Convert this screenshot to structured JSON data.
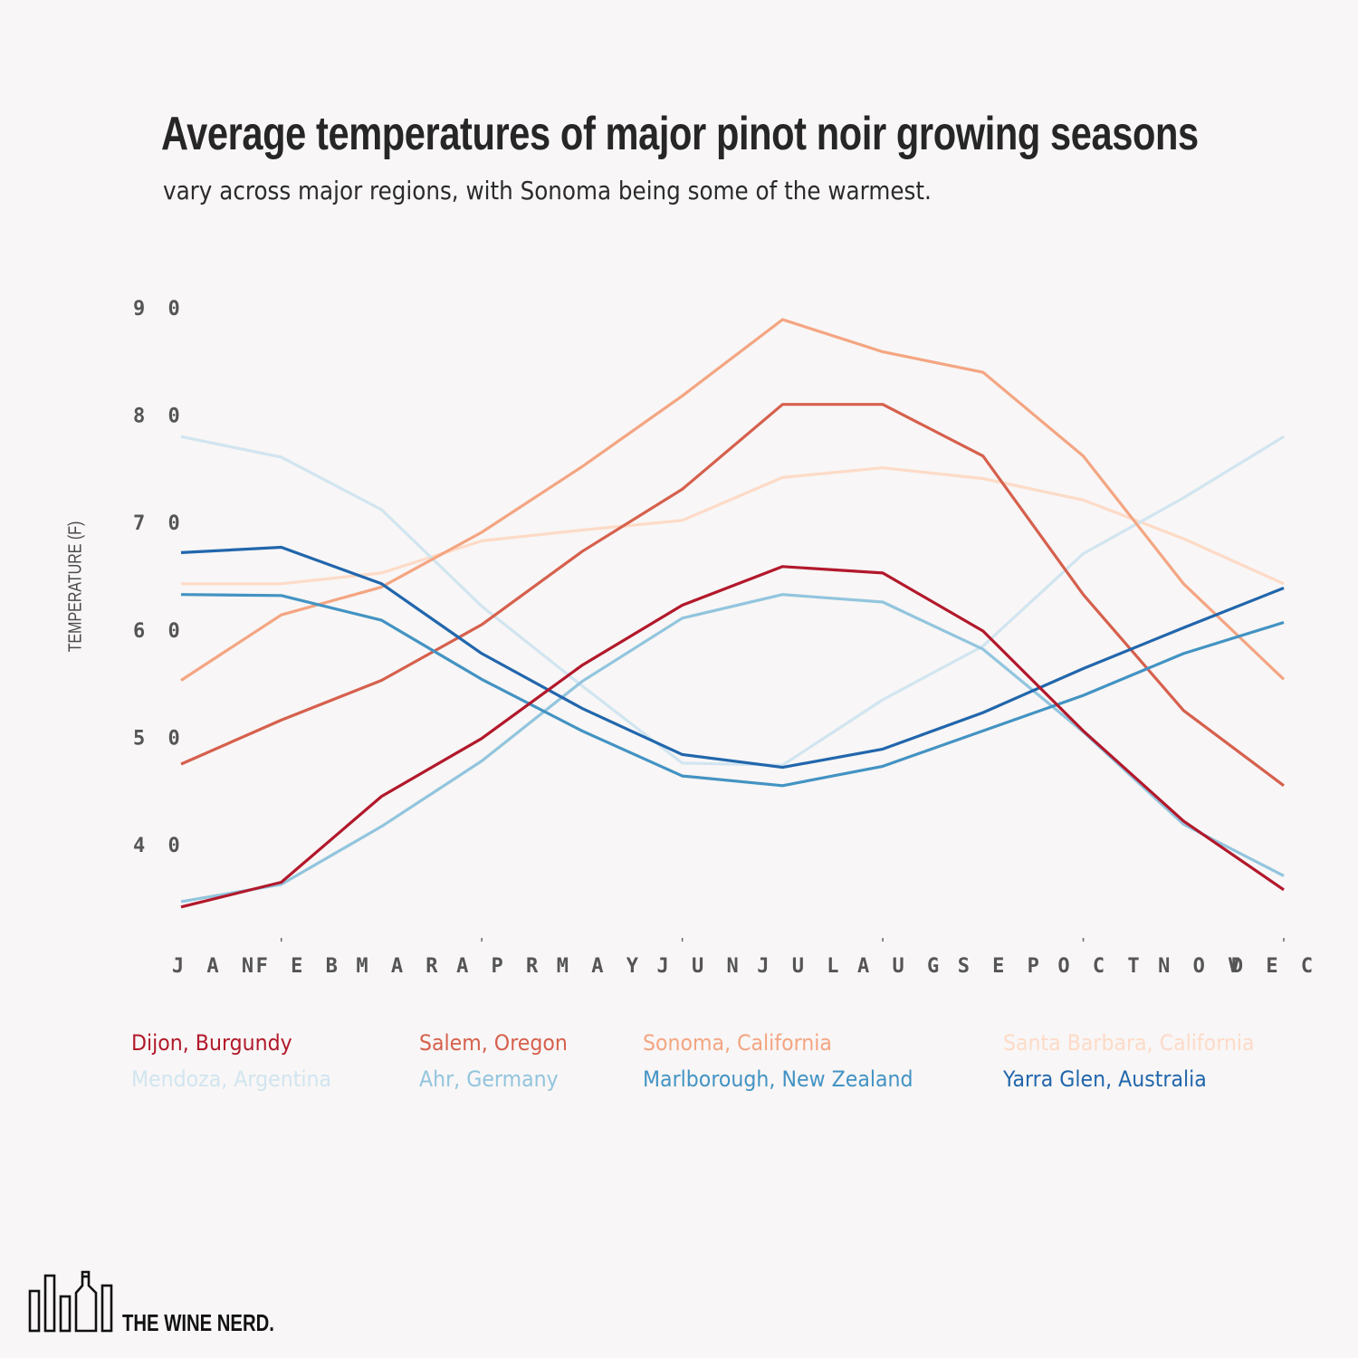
{
  "chart_data": {
    "type": "line",
    "title": "Average temperatures of major pinot noir growing seasons",
    "subtitle": "vary across major regions, with Sonoma being some of the warmest.",
    "xlabel": "",
    "ylabel": "TEMPERATURE (F)",
    "x": [
      "JAN",
      "FEB",
      "MAR",
      "APR",
      "MAY",
      "JUN",
      "JUL",
      "AUG",
      "SEP",
      "OCT",
      "NOV",
      "DEC"
    ],
    "y_ticks": [
      40,
      50,
      60,
      70,
      80,
      90
    ],
    "y_tick_labels": [
      "4 0",
      "5 0",
      "6 0",
      "7 0",
      "8 0",
      "9 0"
    ],
    "ylim": [
      30,
      90
    ],
    "grid": false,
    "legend_position": "bottom",
    "series": [
      {
        "name": "Dijon, Burgundy",
        "color": "#b2182b",
        "values": [
          34.2,
          36.5,
          44.5,
          49.9,
          56.7,
          62.3,
          65.9,
          65.3,
          59.9,
          50.6,
          42.2,
          35.8
        ]
      },
      {
        "name": "Salem, Oregon",
        "color": "#d6604d",
        "values": [
          47.5,
          51.6,
          55.3,
          60.5,
          67.3,
          73.1,
          81.0,
          81.0,
          76.2,
          63.3,
          52.5,
          45.5
        ]
      },
      {
        "name": "Sonoma, California",
        "color": "#f4a582",
        "values": [
          55.3,
          61.4,
          64.0,
          69.1,
          75.2,
          81.8,
          88.9,
          85.9,
          84.0,
          76.2,
          64.3,
          55.4
        ]
      },
      {
        "name": "Santa Barbara, California",
        "color": "#fddbc7",
        "values": [
          64.3,
          64.3,
          65.3,
          68.3,
          69.3,
          70.2,
          74.2,
          75.1,
          74.1,
          72.1,
          68.5,
          64.3
        ]
      },
      {
        "name": "Mendoza, Argentina",
        "color": "#d1e5f0",
        "values": [
          78.0,
          76.1,
          71.2,
          62.2,
          54.8,
          47.6,
          47.4,
          53.5,
          58.5,
          67.1,
          72.3,
          78.0
        ]
      },
      {
        "name": "Ahr, Germany",
        "color": "#92c5de",
        "values": [
          34.7,
          36.3,
          41.7,
          47.8,
          55.2,
          61.1,
          63.3,
          62.6,
          58.2,
          50.5,
          41.9,
          37.1
        ]
      },
      {
        "name": "Marlborough, New Zealand",
        "color": "#4393c3",
        "values": [
          63.3,
          63.2,
          60.9,
          55.4,
          50.6,
          46.4,
          45.5,
          47.3,
          50.6,
          53.9,
          57.8,
          60.7
        ]
      },
      {
        "name": "Yarra Glen, Australia",
        "color": "#2166ac",
        "values": [
          67.2,
          67.7,
          64.3,
          57.8,
          52.7,
          48.4,
          47.2,
          48.9,
          52.3,
          56.4,
          60.2,
          63.9
        ]
      }
    ]
  },
  "branding": {
    "logo_icon": "wine-bottles-icon",
    "logo_text": "THE WINE NERD."
  }
}
